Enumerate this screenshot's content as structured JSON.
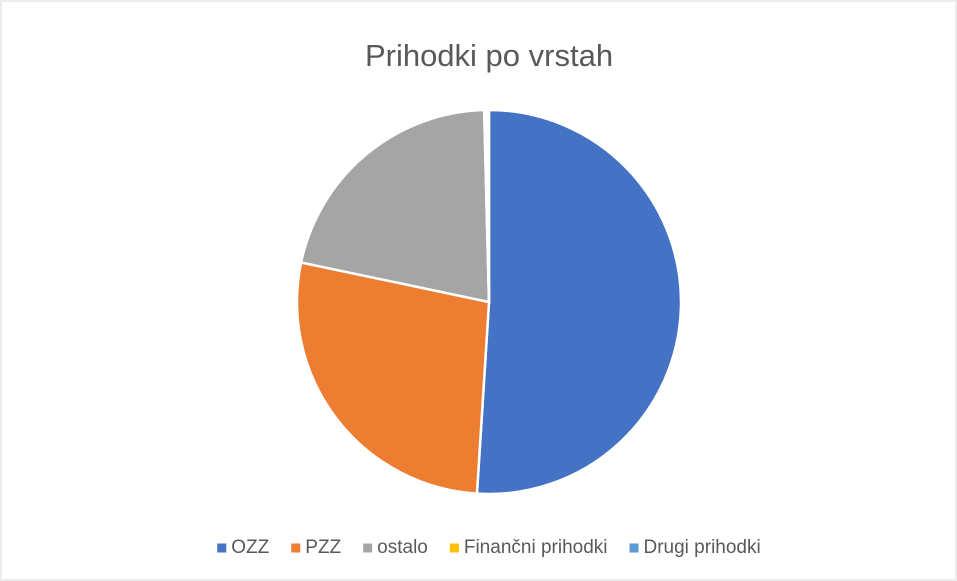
{
  "chart_data": {
    "type": "pie",
    "title": "Prihodki po vrstah",
    "categories": [
      "OZZ",
      "PZZ",
      "ostalo",
      "Finančni prihodki",
      "Drugi prihodki"
    ],
    "values": [
      51,
      27.3,
      21.3,
      0.2,
      0.2
    ],
    "colors": [
      "#4472c4",
      "#ed7d31",
      "#a5a5a5",
      "#ffc000",
      "#5b9bd5"
    ],
    "legend": "bottom"
  }
}
